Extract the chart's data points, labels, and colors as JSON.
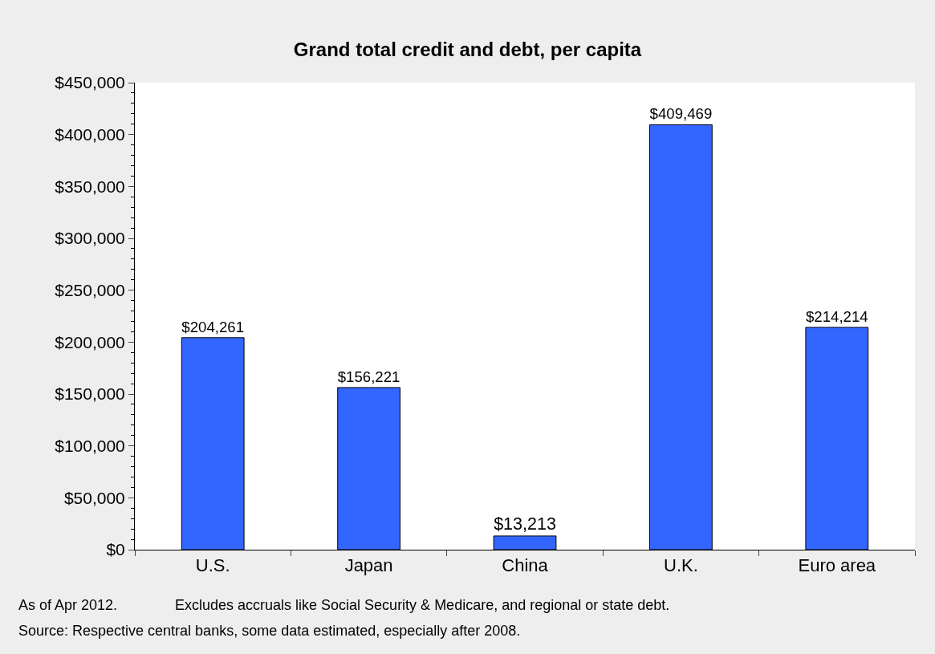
{
  "chart_data": {
    "type": "bar",
    "title": "Grand total credit and debt, per capita",
    "categories": [
      "U.S.",
      "Japan",
      "China",
      "U.K.",
      "Euro area"
    ],
    "values": [
      204261,
      156221,
      13213,
      409469,
      214214
    ],
    "value_labels": [
      "$204,261",
      "$156,221",
      "$13,213",
      "$409,469",
      "$214,214"
    ],
    "color": "#3366ff",
    "ylim": [
      0,
      450000
    ],
    "yticks": [
      {
        "value": 0,
        "label": "$0"
      },
      {
        "value": 50000,
        "label": "$50,000"
      },
      {
        "value": 100000,
        "label": "$100,000"
      },
      {
        "value": 150000,
        "label": "$150,000"
      },
      {
        "value": 200000,
        "label": "$200,000"
      },
      {
        "value": 250000,
        "label": "$250,000"
      },
      {
        "value": 300000,
        "label": "$300,000"
      },
      {
        "value": 350000,
        "label": "$350,000"
      },
      {
        "value": 400000,
        "label": "$400,000"
      },
      {
        "value": 450000,
        "label": "$450,000"
      }
    ],
    "annotations": [
      "As of Apr 2012.",
      "Excludes accruals like Social Security & Medicare, and regional or state debt.",
      "Source: Respective central banks, some data estimated, especially after 2008."
    ]
  }
}
